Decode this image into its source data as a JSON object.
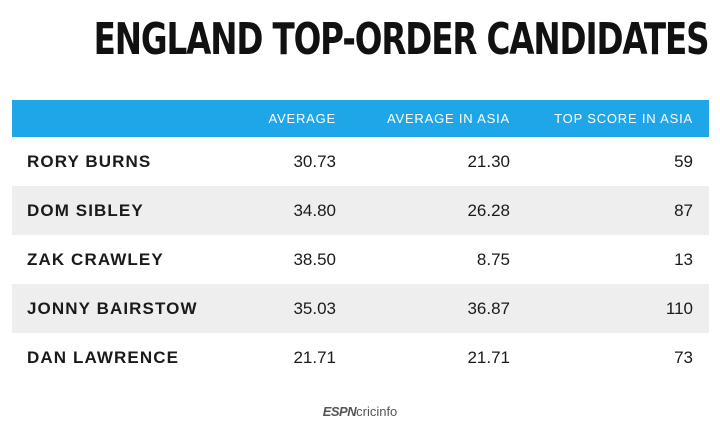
{
  "title": "ENGLAND TOP-ORDER CANDIDATES",
  "colors": {
    "header_bg": "#1fa6e8",
    "row_shade": "#eeeeee"
  },
  "table": {
    "headers": [
      "",
      "AVERAGE",
      "AVERAGE IN ASIA",
      "TOP SCORE IN ASIA"
    ],
    "rows": [
      [
        "RORY BURNS",
        "30.73",
        "21.30",
        "59"
      ],
      [
        "DOM SIBLEY",
        "34.80",
        "26.28",
        "87"
      ],
      [
        "ZAK CRAWLEY",
        "38.50",
        "8.75",
        "13"
      ],
      [
        "JONNY BAIRSTOW",
        "35.03",
        "36.87",
        "110"
      ],
      [
        "DAN LAWRENCE",
        "21.71",
        "21.71",
        "73"
      ]
    ]
  },
  "logo": {
    "brand": "ESPN",
    "product": "cricinfo"
  }
}
